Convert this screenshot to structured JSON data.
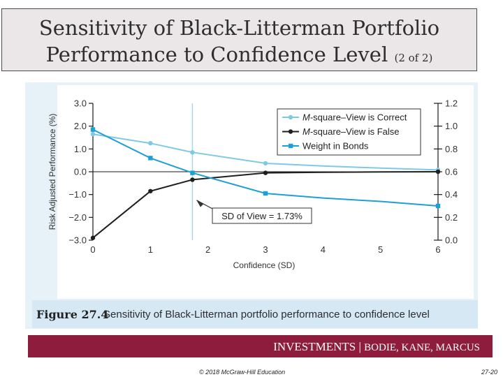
{
  "slide": {
    "title_line1": "Sensitivity of Black-Litterman Portfolio",
    "title_line2": "Performance to Confidence Level",
    "title_suffix": "(2 of 2)"
  },
  "figure": {
    "label": "Figure 27.4",
    "caption": "Sensitivity of Black-Litterman portfolio performance to confidence level"
  },
  "footer": {
    "banner_main": "INVESTMENTS | ",
    "banner_authors": "BODIE, KANE, MARCUS",
    "copyright": "© 2018 McGraw-Hill Education",
    "page": "27-20"
  },
  "chart_data": {
    "type": "line",
    "title": "",
    "xlabel": "Confidence (SD)",
    "ylabel": "Risk Adjusted Performance (%)",
    "x_ticks": [
      0,
      1,
      2,
      3,
      4,
      5,
      6
    ],
    "x_tick_labels": [
      "0",
      "1",
      "2",
      "3",
      "4",
      "5",
      "6"
    ],
    "xlim": [
      0,
      6
    ],
    "ylim": [
      -3.0,
      3.0
    ],
    "y_ticks": [
      -3.0,
      -2.0,
      -1.0,
      0.0,
      1.0,
      2.0,
      3.0
    ],
    "y_tick_labels": [
      "−3.0",
      "−2.0",
      "−1.0",
      "0.0",
      "1.0",
      "2.0",
      "3.0"
    ],
    "y2lim": [
      0.0,
      1.2
    ],
    "y2_ticks": [
      0.0,
      0.2,
      0.4,
      0.6,
      0.8,
      1.0,
      1.2
    ],
    "y2_tick_labels": [
      "0.0",
      "0.2",
      "0.4",
      "0.6",
      "0.8",
      "1.0",
      "1.2"
    ],
    "legend_position": "top-right",
    "series": [
      {
        "name_prefix": "M",
        "name_rest": "-square–View is Correct",
        "axis": "left",
        "color": "#7fc8e6",
        "marker": "circle",
        "points": [
          [
            0,
            1.65
          ],
          [
            1,
            1.25
          ],
          [
            1.73,
            0.85
          ],
          [
            3,
            0.37
          ],
          [
            4,
            0.25
          ],
          [
            5,
            0.16
          ],
          [
            6,
            0.08
          ]
        ],
        "marker_x": [
          0,
          1,
          1.73,
          3,
          6
        ]
      },
      {
        "name_prefix": "M",
        "name_rest": "-square–View is False",
        "axis": "left",
        "color": "#1f1f1f",
        "marker": "circle",
        "points": [
          [
            0,
            -2.9
          ],
          [
            1,
            -0.85
          ],
          [
            1.73,
            -0.35
          ],
          [
            3,
            -0.05
          ],
          [
            4,
            -0.02
          ],
          [
            5,
            -0.01
          ],
          [
            6,
            0.0
          ]
        ],
        "marker_x": [
          0,
          1,
          1.73,
          3,
          6
        ]
      },
      {
        "name": "Weight in Bonds",
        "axis": "right",
        "color": "#1e9fd6",
        "marker": "square",
        "points": [
          [
            0,
            0.97
          ],
          [
            1,
            0.72
          ],
          [
            1.73,
            0.59
          ],
          [
            3,
            0.41
          ],
          [
            4,
            0.37
          ],
          [
            5,
            0.34
          ],
          [
            6,
            0.3
          ]
        ],
        "marker_x": [
          0,
          1,
          1.73,
          3,
          6
        ]
      }
    ],
    "reference_line": {
      "x": 1.73,
      "color": "#a9d6ec"
    },
    "annotation": {
      "text": "SD of View = 1.73%",
      "arrow_to": [
        1.73,
        -1.25
      ]
    }
  }
}
